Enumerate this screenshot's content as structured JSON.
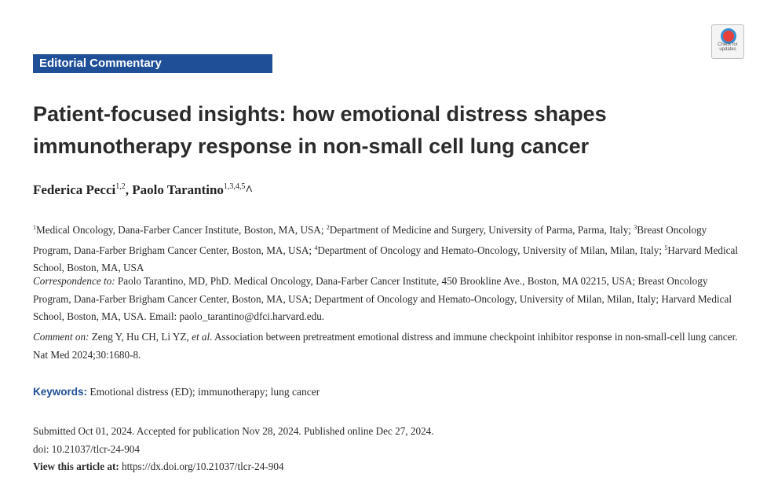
{
  "banner": {
    "label": "Editorial Commentary"
  },
  "badge": {
    "line1": "Check for",
    "line2": "updates"
  },
  "title": "Patient-focused insights: how emotional distress shapes immunotherapy response in non-small cell lung cancer",
  "authors": [
    {
      "name": "Federica Pecci",
      "sup": "1,2",
      "sep": ", "
    },
    {
      "name": "Paolo Tarantino",
      "sup": "1,3,4,5",
      "mark": "^"
    }
  ],
  "affiliations": [
    {
      "sup": "1",
      "text": "Medical Oncology, Dana-Farber Cancer Institute, Boston, MA, USA; "
    },
    {
      "sup": "2",
      "text": "Department of Medicine and Surgery, University of Parma, Parma, Italy; "
    },
    {
      "sup": "3",
      "text": "Breast Oncology Program, Dana-Farber Brigham Cancer Center, Boston, MA, USA; "
    },
    {
      "sup": "4",
      "text": "Department of Oncology and Hemato-Oncology, University of Milan, Milan, Italy; "
    },
    {
      "sup": "5",
      "text": "Harvard Medical School, Boston, MA, USA"
    }
  ],
  "correspondence": {
    "label": "Correspondence to:",
    "text": " Paolo Tarantino, MD, PhD. Medical Oncology, Dana-Farber Cancer Institute, 450 Brookline Ave., Boston, MA 02215, USA; Breast Oncology Program, Dana-Farber Brigham Cancer Center, Boston, MA, USA; Department of Oncology and Hemato-Oncology, University of Milan, Milan, Italy; Harvard Medical School, Boston, MA, USA. Email: paolo_tarantino@dfci.harvard.edu."
  },
  "comment": {
    "label": "Comment on:",
    "authors": " Zeng Y, Hu CH, Li YZ, ",
    "etal": "et al",
    "text": ". Association between pretreatment emotional distress and immune checkpoint inhibitor response in non-small-cell lung cancer. Nat Med 2024;30:1680-8."
  },
  "keywords": {
    "label": "Keywords:",
    "value": " Emotional distress (ED); immunotherapy; lung cancer"
  },
  "dates": "Submitted Oct 01, 2024. Accepted for publication Nov 28, 2024. Published online Dec 27, 2024.",
  "doi": "doi: 10.21037/tlcr-24-904",
  "view": {
    "label": "View this article at:",
    "url": " https://dx.doi.org/10.21037/tlcr-24-904"
  }
}
